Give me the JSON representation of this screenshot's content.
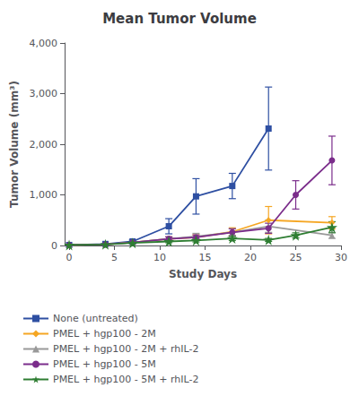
{
  "chart_data": {
    "type": "line",
    "title": "Mean Tumor Volume",
    "xlabel": "Study Days",
    "ylabel": "Tumor Volume (mm³)",
    "xlim": [
      -0.5,
      30
    ],
    "ylim": [
      0,
      4000
    ],
    "xticks": [
      0,
      5,
      10,
      15,
      20,
      25,
      30
    ],
    "yticks": [
      0,
      1000,
      2000,
      3000,
      4000
    ],
    "grid": false,
    "legend": "bottom",
    "series": [
      {
        "name": "None (untreated)",
        "color": "#2e4fa2",
        "marker": "square",
        "x": [
          0,
          4,
          7,
          11,
          14,
          18,
          22
        ],
        "values": [
          10,
          30,
          80,
          380,
          970,
          1175,
          2310
        ],
        "yerr": [
          5,
          10,
          30,
          150,
          350,
          250,
          820
        ]
      },
      {
        "name": "PMEL + hgp100 - 2M",
        "color": "#f5a623",
        "marker": "diamond",
        "x": [
          0,
          4,
          7,
          11,
          14,
          18,
          22,
          29
        ],
        "values": [
          10,
          20,
          60,
          130,
          160,
          270,
          500,
          450
        ],
        "yerr": [
          5,
          8,
          20,
          40,
          50,
          80,
          270,
          120
        ]
      },
      {
        "name": "PMEL + hgp100 - 2M + rhIL-2",
        "color": "#999999",
        "marker": "triangle",
        "x": [
          0,
          4,
          7,
          11,
          14,
          18,
          22,
          29
        ],
        "values": [
          10,
          20,
          60,
          130,
          180,
          260,
          380,
          200
        ],
        "yerr": [
          5,
          8,
          20,
          40,
          60,
          70,
          120,
          60
        ]
      },
      {
        "name": "PMEL + hgp100 - 5M",
        "color": "#7b2d8b",
        "marker": "circle",
        "x": [
          0,
          4,
          7,
          11,
          14,
          18,
          22,
          25,
          29
        ],
        "values": [
          10,
          20,
          60,
          130,
          160,
          260,
          340,
          1000,
          1680
        ],
        "yerr": [
          5,
          8,
          20,
          40,
          50,
          70,
          100,
          280,
          480
        ]
      },
      {
        "name": "PMEL + hgp100 - 5M + rhIL-2",
        "color": "#2e7d32",
        "marker": "star",
        "x": [
          0,
          4,
          7,
          11,
          14,
          18,
          22,
          25,
          29
        ],
        "values": [
          10,
          20,
          50,
          80,
          100,
          140,
          110,
          200,
          360
        ],
        "yerr": [
          5,
          8,
          15,
          25,
          30,
          40,
          30,
          50,
          110
        ]
      }
    ]
  }
}
